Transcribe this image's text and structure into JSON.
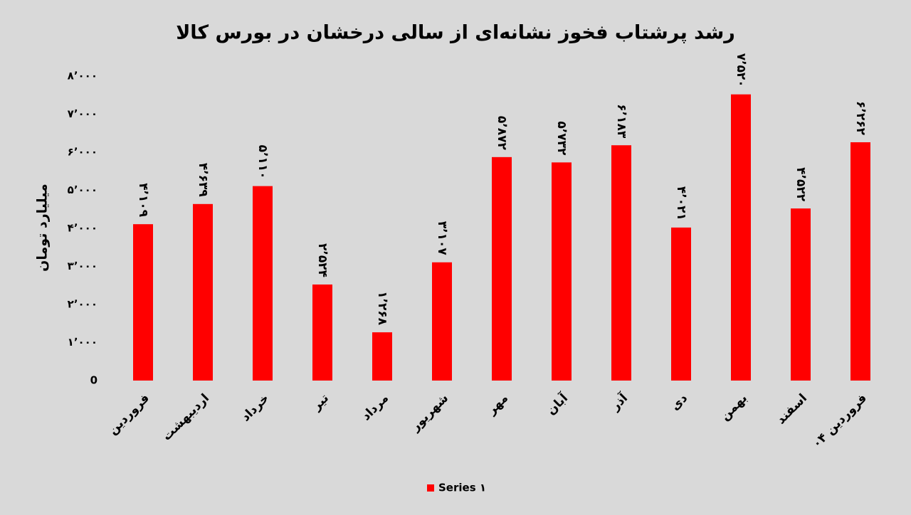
{
  "chart_data": {
    "type": "bar",
    "title": "رشد پرشتاب فخوز نشانه‌ای از سالی درخشان در بورس کالا",
    "y_label": "میلیارد تومان",
    "categories": [
      "فروردین",
      "اردیبهشت",
      "خرداد",
      "تیر",
      "مرداد",
      "شهریور",
      "مهر",
      "آبان",
      "آذر",
      "دی",
      "بهمن",
      "اسفند",
      "فروردین ۰۴"
    ],
    "series": [
      {
        "name": "Series ۱",
        "color": "#ff0000",
        "values": [
          4109,
          4639,
          5110,
          2524,
          1268,
          3107,
          5872,
          5732,
          6183,
          4021,
          7520,
          4522,
          6262
        ],
        "value_labels": [
          "۴٬۱۰۹",
          "۴٬۶۳۹",
          "۵٬۱۱۰",
          "۲٬۵۲۴",
          "۱٬۲۶۸",
          "۳٬۱۰۷",
          "۵٬۸۷۲",
          "۵٬۷۳۲",
          "۶٬۱۸۳",
          "۴٬۰۲۱",
          "۷٬۵۲۰",
          "۴٬۵۲۲",
          "۶٬۲۶۲"
        ]
      }
    ],
    "ylim": [
      0,
      8000
    ],
    "yticks": [
      0,
      {
        "value": 1000,
        "label": "۱٬۰۰۰"
      },
      {
        "value": 2000,
        "label": "۲٬۰۰۰"
      },
      {
        "value": 3000,
        "label": "۳٬۰۰۰"
      },
      {
        "value": 4000,
        "label": "۴٬۰۰۰"
      },
      {
        "value": 5000,
        "label": "۵٬۰۰۰"
      },
      {
        "value": 6000,
        "label": "۶٬۰۰۰"
      },
      {
        "value": 7000,
        "label": "۷٬۰۰۰"
      },
      {
        "value": 8000,
        "label": "۸٬۰۰۰"
      }
    ],
    "grid": false,
    "legend": "bottom"
  }
}
